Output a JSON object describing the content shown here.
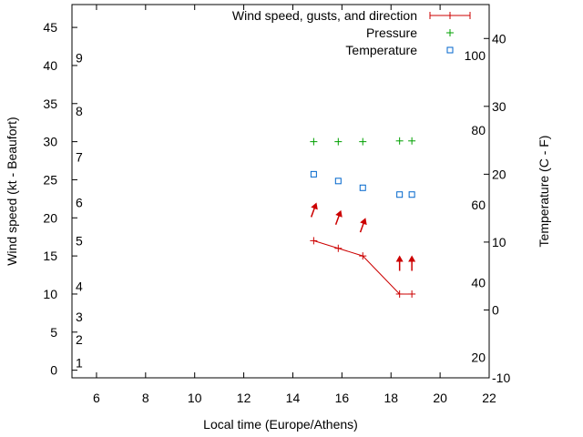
{
  "chart_data": {
    "type": "line",
    "xlabel": "Local time (Europe/Athens)",
    "ylabel": "Wind speed (kt - Beaufort)",
    "y2label": "Temperature (C - F)",
    "xlim": [
      5,
      22
    ],
    "ylim": [
      -1,
      48
    ],
    "y2lim": [
      -10,
      45
    ],
    "x_ticks": [
      6,
      8,
      10,
      12,
      14,
      16,
      18,
      20,
      22
    ],
    "y_ticks": [
      0,
      5,
      10,
      15,
      20,
      25,
      30,
      35,
      40,
      45
    ],
    "y2_ticks": [
      -10,
      0,
      10,
      20,
      30,
      40
    ],
    "beaufort_labels": [
      {
        "label": "1",
        "y": 1
      },
      {
        "label": "2",
        "y": 4
      },
      {
        "label": "3",
        "y": 7
      },
      {
        "label": "4",
        "y": 11
      },
      {
        "label": "5",
        "y": 17
      },
      {
        "label": "6",
        "y": 22
      },
      {
        "label": "7",
        "y": 28
      },
      {
        "label": "8",
        "y": 34
      },
      {
        "label": "9",
        "y": 41
      }
    ],
    "fahrenheit_labels": [
      {
        "label": "20",
        "y2": -7
      },
      {
        "label": "40",
        "y2": 4
      },
      {
        "label": "60",
        "y2": 15.5
      },
      {
        "label": "80",
        "y2": 26.5
      },
      {
        "label": "100",
        "y2": 37.5
      }
    ],
    "legend": {
      "position": "top-right",
      "entries": [
        "Wind speed, gusts, and direction",
        "Pressure",
        "Temperature"
      ]
    },
    "series": [
      {
        "name": "Wind speed, gusts, and direction",
        "color": "#cc0000",
        "x": [
          14.85,
          15.85,
          16.85,
          18.35,
          18.85
        ],
        "y": [
          17,
          16,
          15,
          10,
          10
        ],
        "gusts": [
          21,
          20,
          19,
          14,
          14
        ],
        "direction_deg": [
          20,
          20,
          20,
          0,
          0
        ]
      },
      {
        "name": "Pressure",
        "color": "#00a000",
        "x": [
          14.85,
          15.85,
          16.85,
          18.35,
          18.85
        ],
        "y": [
          30,
          30,
          30,
          30.1,
          30.1
        ]
      },
      {
        "name": "Temperature",
        "color": "#0066cc",
        "x": [
          14.85,
          15.85,
          16.85,
          18.35,
          18.85
        ],
        "y2": [
          20,
          19,
          18,
          17,
          17
        ]
      }
    ]
  }
}
